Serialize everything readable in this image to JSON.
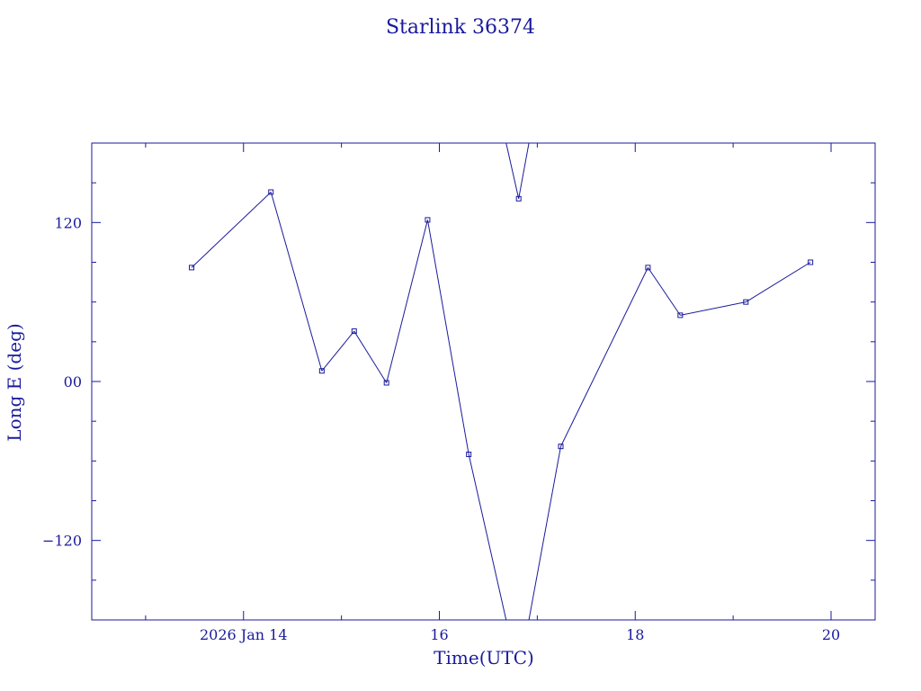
{
  "chart_data": {
    "type": "line",
    "title": "Starlink 36374",
    "xlabel": "Time(UTC)",
    "ylabel": "Long E (deg)",
    "x_unit": "days of January 2026",
    "xlim": [
      12.45,
      20.45
    ],
    "ylim": [
      -180,
      180
    ],
    "grid": false,
    "legend": "none",
    "color": "#1a1a9c",
    "x_ticks": [
      {
        "value": 14,
        "label": "2026 Jan 14"
      },
      {
        "value": 16,
        "label": "16"
      },
      {
        "value": 18,
        "label": "18"
      },
      {
        "value": 20,
        "label": "20"
      }
    ],
    "y_ticks": [
      {
        "value": 120,
        "label": "120"
      },
      {
        "value": 0,
        "label": "00"
      },
      {
        "value": -120,
        "label": "−120"
      }
    ],
    "series": [
      {
        "points": [
          {
            "x": 13.47,
            "y": 86
          },
          {
            "x": 14.28,
            "y": 143
          },
          {
            "x": 14.8,
            "y": 8
          },
          {
            "x": 15.13,
            "y": 38
          },
          {
            "x": 15.46,
            "y": -1
          },
          {
            "x": 15.88,
            "y": 122
          },
          {
            "x": 16.3,
            "y": -55
          },
          {
            "x": 16.81,
            "y": 138
          },
          {
            "x": 17.24,
            "y": -49
          },
          {
            "x": 18.13,
            "y": 86
          },
          {
            "x": 18.46,
            "y": 50
          },
          {
            "x": 19.13,
            "y": 60
          },
          {
            "x": 19.79,
            "y": 90
          }
        ]
      }
    ]
  }
}
